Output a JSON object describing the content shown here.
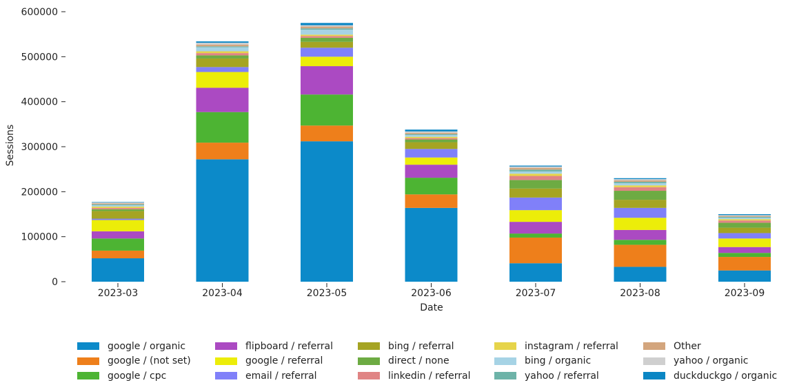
{
  "chart_data": {
    "type": "bar",
    "stacked": true,
    "xlabel": "Date",
    "ylabel": "Sessions",
    "ylim": [
      0,
      600000
    ],
    "yticks": [
      0,
      100000,
      200000,
      300000,
      400000,
      500000,
      600000
    ],
    "ytick_labels": [
      "0",
      "100000",
      "200000",
      "300000",
      "400000",
      "500000",
      "600000"
    ],
    "grid": false,
    "legend_position": "bottom",
    "categories": [
      "2023-03",
      "2023-04",
      "2023-05",
      "2023-06",
      "2023-07",
      "2023-08",
      "2023-09"
    ],
    "series": [
      {
        "name": "google / organic",
        "color": "#0c8ac9",
        "values": [
          52000,
          272000,
          312000,
          164000,
          41000,
          33000,
          25000
        ]
      },
      {
        "name": "google / (not set)",
        "color": "#ee7f1b",
        "values": [
          17000,
          37000,
          35000,
          30000,
          57000,
          49000,
          30000
        ]
      },
      {
        "name": "google / cpc",
        "color": "#4db433",
        "values": [
          27000,
          68000,
          69000,
          37000,
          9000,
          11000,
          9000
        ]
      },
      {
        "name": "flipboard / referral",
        "color": "#ab4ac2",
        "values": [
          16000,
          54000,
          63000,
          29000,
          26000,
          22000,
          13000
        ]
      },
      {
        "name": "google / referral",
        "color": "#eced09",
        "values": [
          25000,
          35000,
          21000,
          16000,
          26000,
          27000,
          19000
        ]
      },
      {
        "name": "email / referral",
        "color": "#8080f9",
        "values": [
          3000,
          11000,
          20000,
          19000,
          28000,
          22000,
          12000
        ]
      },
      {
        "name": "bing / referral",
        "color": "#a5a423",
        "values": [
          17000,
          19000,
          13000,
          15000,
          20000,
          18000,
          12000
        ]
      },
      {
        "name": "direct / none",
        "color": "#6dab43",
        "values": [
          4000,
          7000,
          9000,
          6000,
          19000,
          20000,
          11000
        ]
      },
      {
        "name": "linkedin / referral",
        "color": "#e08484",
        "values": [
          3000,
          5000,
          4000,
          3000,
          9000,
          8000,
          5000
        ]
      },
      {
        "name": "instagram / referral",
        "color": "#e6d44a",
        "values": [
          3000,
          4000,
          3000,
          3000,
          5000,
          4000,
          3000
        ]
      },
      {
        "name": "bing / organic",
        "color": "#a6d3e5",
        "values": [
          3000,
          9000,
          11000,
          4000,
          5000,
          5000,
          3000
        ]
      },
      {
        "name": "yahoo / referral",
        "color": "#6db3a8",
        "values": [
          2000,
          2000,
          3000,
          2000,
          4000,
          3000,
          2000
        ]
      },
      {
        "name": "Other",
        "color": "#d3a57d",
        "values": [
          2000,
          4000,
          4000,
          3000,
          4000,
          3000,
          2000
        ]
      },
      {
        "name": "yahoo / organic",
        "color": "#cfcfcf",
        "values": [
          2000,
          4000,
          3000,
          3000,
          3000,
          3000,
          2000
        ]
      },
      {
        "name": "duckduckgo / organic",
        "color": "#0a86c4",
        "values": [
          1000,
          3000,
          5000,
          4000,
          2000,
          2000,
          2000
        ]
      }
    ]
  }
}
